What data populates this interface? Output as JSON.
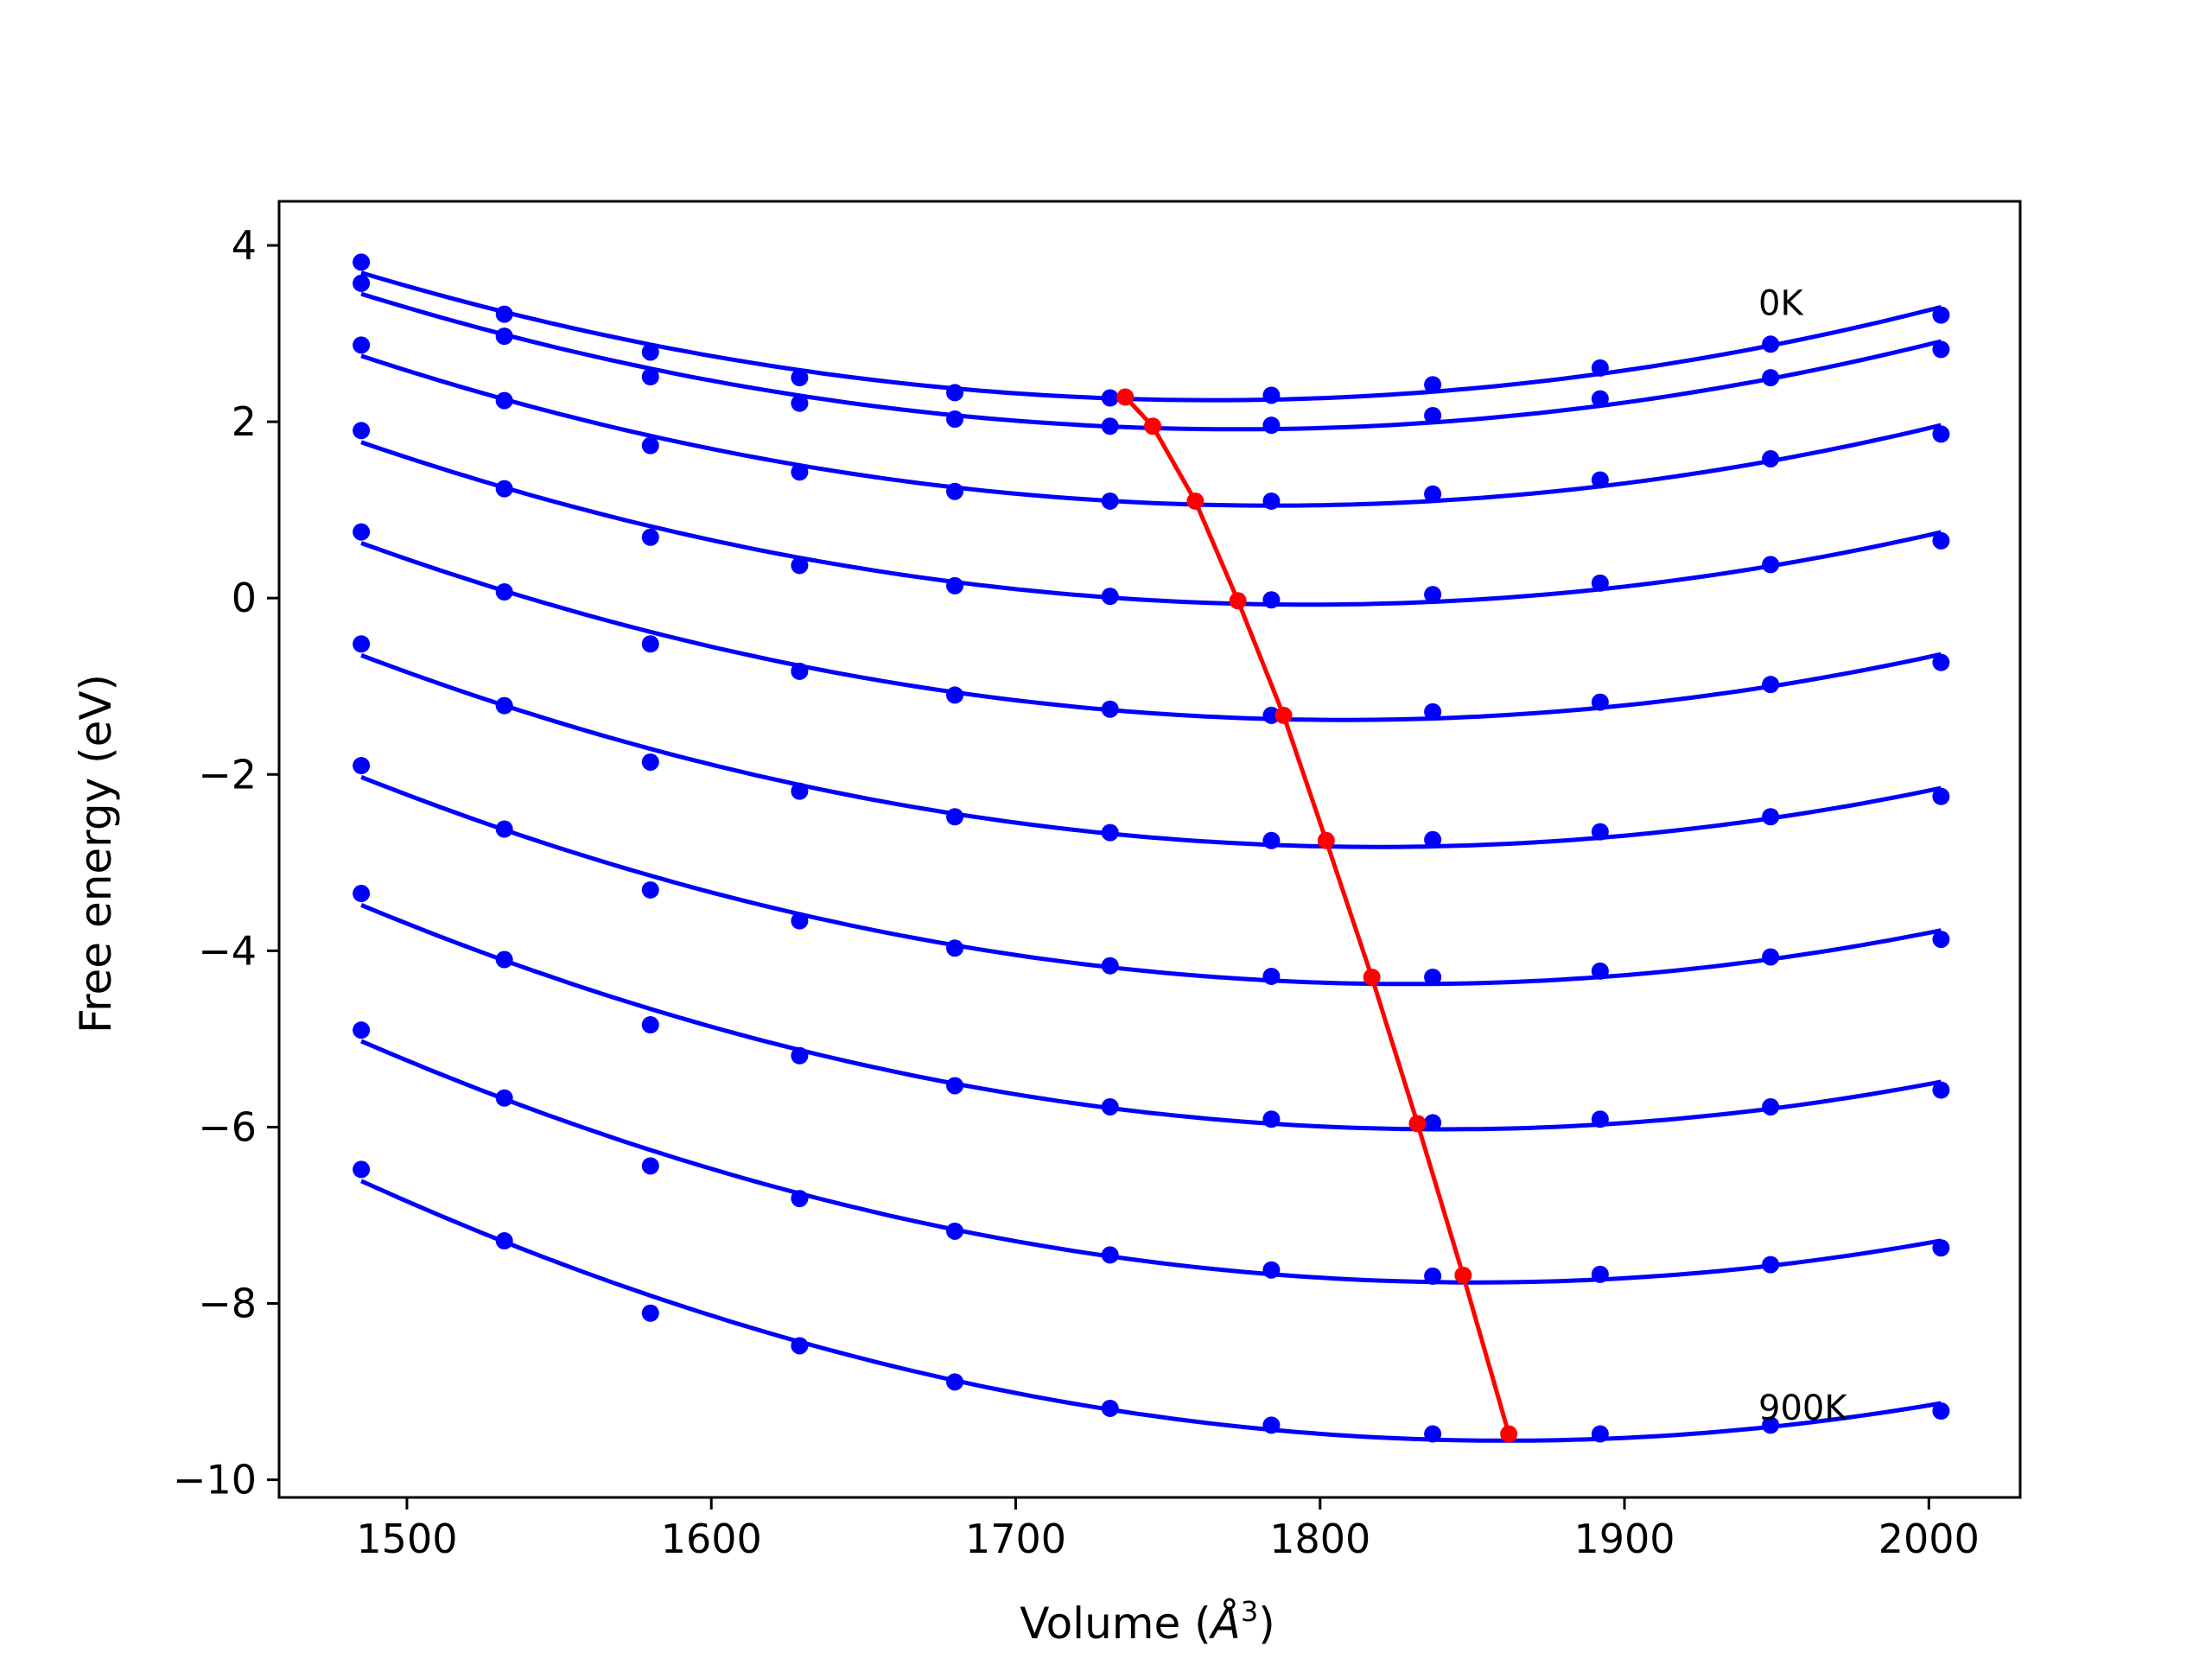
{
  "chart_data": {
    "type": "line",
    "title": "",
    "xlabel": "Volume (",
    "xlabel_symbol": "Å",
    "xlabel_exp": "3",
    "xlabel_close": ")",
    "ylabel": "Free energy (eV)",
    "xlim": [
      1458,
      2030
    ],
    "ylim": [
      -10.2,
      4.5
    ],
    "x_ticks": [
      1500,
      1600,
      1700,
      1800,
      1900,
      2000
    ],
    "x_tick_labels": [
      "1500",
      "1600",
      "1700",
      "1800",
      "1900",
      "2000"
    ],
    "y_ticks": [
      4,
      2,
      0,
      -2,
      -4,
      -6,
      -8,
      -10
    ],
    "y_tick_labels": [
      "4",
      "2",
      "0",
      "−2",
      "−4",
      "−6",
      "−8",
      "−10"
    ],
    "grid": false,
    "colors": {
      "curves": "#0000ff",
      "points": "#0000ff",
      "minima": "#ff0000",
      "axes": "#000000"
    },
    "x": [
      1485,
      1532,
      1580,
      1629,
      1680,
      1731,
      1784,
      1837,
      1892,
      1948,
      2004
    ],
    "series": [
      {
        "values": [
          3.81,
          3.22,
          2.79,
          2.5,
          2.33,
          2.27,
          2.3,
          2.42,
          2.61,
          2.88,
          3.21
        ],
        "minimum": [
          1736,
          2.28
        ]
      },
      {
        "values": [
          3.57,
          2.97,
          2.51,
          2.21,
          2.03,
          1.95,
          1.96,
          2.07,
          2.26,
          2.5,
          2.82
        ],
        "minimum": [
          1745,
          1.95
        ]
      },
      {
        "values": [
          2.87,
          2.24,
          1.73,
          1.43,
          1.21,
          1.1,
          1.1,
          1.18,
          1.34,
          1.58,
          1.86
        ],
        "minimum": [
          1759,
          1.1
        ]
      },
      {
        "values": [
          1.9,
          1.24,
          0.69,
          0.37,
          0.14,
          0.02,
          -0.02,
          0.04,
          0.17,
          0.38,
          0.65
        ],
        "minimum": [
          1773,
          -0.03
        ]
      },
      {
        "values": [
          0.75,
          0.07,
          -0.52,
          -0.83,
          -1.1,
          -1.26,
          -1.33,
          -1.29,
          -1.18,
          -0.98,
          -0.73
        ],
        "minimum": [
          1788,
          -1.33
        ]
      },
      {
        "values": [
          -0.52,
          -1.22,
          -1.86,
          -2.19,
          -2.48,
          -2.66,
          -2.75,
          -2.74,
          -2.65,
          -2.48,
          -2.25
        ],
        "minimum": [
          1802,
          -2.75
        ]
      },
      {
        "values": [
          -1.9,
          -2.62,
          -3.31,
          -3.66,
          -3.97,
          -4.17,
          -4.29,
          -4.3,
          -4.23,
          -4.07,
          -3.87
        ],
        "minimum": [
          1817,
          -4.3
        ]
      },
      {
        "values": [
          -3.35,
          -4.1,
          -4.84,
          -5.19,
          -5.53,
          -5.77,
          -5.91,
          -5.95,
          -5.91,
          -5.77,
          -5.58
        ],
        "minimum": [
          1832,
          -5.96
        ]
      },
      {
        "values": [
          -4.9,
          -5.67,
          -6.44,
          -6.81,
          -7.18,
          -7.45,
          -7.62,
          -7.69,
          -7.67,
          -7.56,
          -7.37
        ],
        "minimum": [
          1847,
          -7.68
        ]
      },
      {
        "values": [
          -6.48,
          -7.29,
          -8.11,
          -8.48,
          -8.89,
          -9.19,
          -9.38,
          -9.48,
          -9.48,
          -9.38,
          -9.22
        ],
        "minimum": [
          1862,
          -9.48
        ]
      }
    ],
    "annotations": [
      {
        "text": "0K",
        "x": 1944,
        "y": 3.35
      },
      {
        "text": "900K",
        "x": 1944,
        "y": -9.18
      }
    ]
  }
}
